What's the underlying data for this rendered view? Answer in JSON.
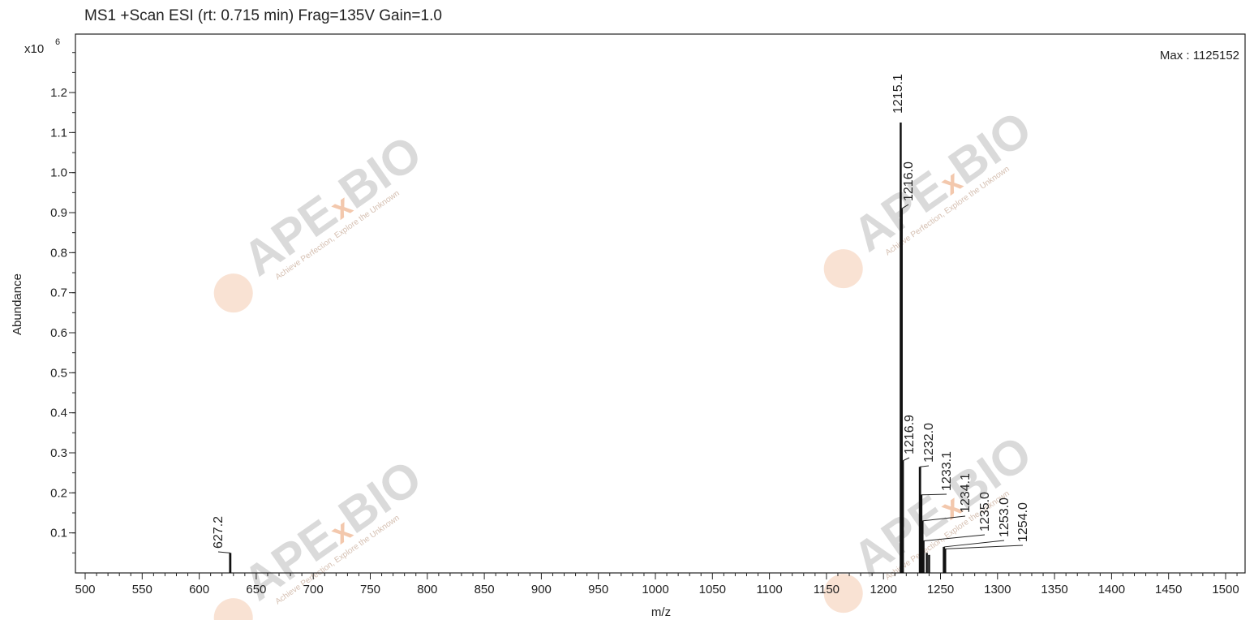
{
  "chart_data": {
    "type": "bar",
    "title": "MS1 +Scan ESI (rt: 0.715 min) Frag=135V Gain=1.0",
    "xlabel": "m/z",
    "ylabel": "Abundance",
    "y_multiplier_label": "x10",
    "y_multiplier_exponent": "6",
    "max_label": "Max : 1125152",
    "xlim": [
      500,
      1510
    ],
    "ylim": [
      0,
      1.3
    ],
    "x_ticks": [
      "500",
      "550",
      "600",
      "650",
      "700",
      "750",
      "800",
      "850",
      "900",
      "950",
      "1000",
      "1050",
      "1100",
      "1150",
      "1200",
      "1250",
      "1300",
      "1350",
      "1400",
      "1450",
      "1500"
    ],
    "y_ticks": [
      "0.1",
      "0.2",
      "0.3",
      "0.4",
      "0.5",
      "0.6",
      "0.7",
      "0.8",
      "0.9",
      "1.0",
      "1.1",
      "1.2"
    ],
    "grid": false,
    "peaks": [
      {
        "mz": 627.2,
        "abundance": 0.05,
        "label": "627.2"
      },
      {
        "mz": 1215.1,
        "abundance": 1.125,
        "label": "1215.1"
      },
      {
        "mz": 1216.0,
        "abundance": 0.91,
        "label": "1216.0"
      },
      {
        "mz": 1216.9,
        "abundance": 0.28,
        "label": "1216.9"
      },
      {
        "mz": 1232.0,
        "abundance": 0.265,
        "label": "1232.0"
      },
      {
        "mz": 1233.1,
        "abundance": 0.195,
        "label": "1233.1"
      },
      {
        "mz": 1234.1,
        "abundance": 0.13,
        "label": "1234.1"
      },
      {
        "mz": 1235.0,
        "abundance": 0.08,
        "label": "1235.0"
      },
      {
        "mz": 1253.0,
        "abundance": 0.065,
        "label": "1253.0"
      },
      {
        "mz": 1254.0,
        "abundance": 0.06,
        "label": "1254.0"
      }
    ],
    "minor_peaks": [
      {
        "mz": 1238.0,
        "abundance": 0.05
      },
      {
        "mz": 1240.0,
        "abundance": 0.045
      }
    ],
    "line_color": "#111111"
  },
  "watermark": {
    "brand_left": "APE",
    "brand_x": "x",
    "brand_right": "BIO",
    "tagline": "Achieve Perfection, Explore the Unknown",
    "accent_color": "#f2c3a5"
  }
}
